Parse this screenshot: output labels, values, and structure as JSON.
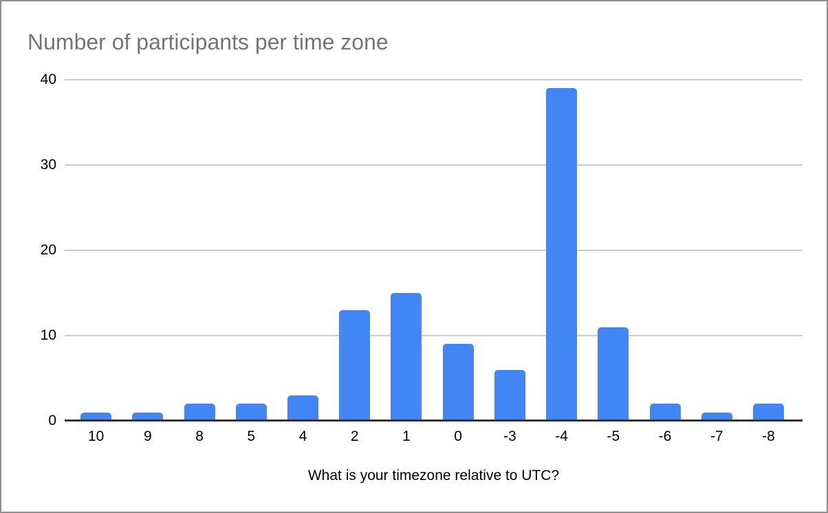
{
  "chart_data": {
    "type": "bar",
    "title": "Number of participants per time zone",
    "xlabel": "What is your timezone relative to UTC?",
    "ylabel": "",
    "categories": [
      "10",
      "9",
      "8",
      "5",
      "4",
      "2",
      "1",
      "0",
      "-3",
      "-4",
      "-5",
      "-6",
      "-7",
      "-8"
    ],
    "values": [
      1,
      1,
      2,
      2,
      3,
      13,
      15,
      9,
      6,
      39,
      11,
      2,
      1,
      2
    ],
    "ylim": [
      0,
      40
    ],
    "y_ticks": [
      0,
      10,
      20,
      30,
      40
    ],
    "grid": true,
    "legend": "none",
    "colors": {
      "bar": "#4285f4",
      "gridline": "#cccccc",
      "axis_line": "#333333",
      "title": "#757575",
      "tick_label": "#000000",
      "frame_border": "#8f8f8f"
    }
  }
}
